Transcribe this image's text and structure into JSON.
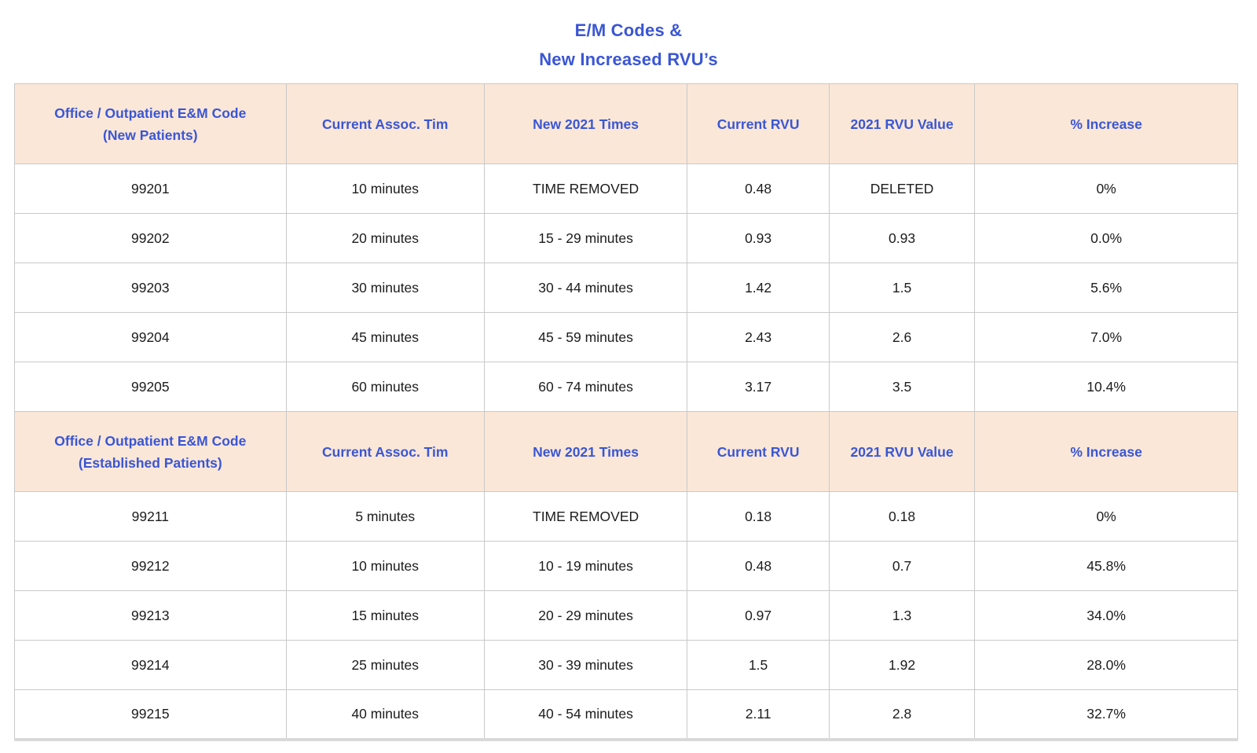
{
  "title": {
    "line1": "E/M Codes &",
    "line2": "New Increased RVU’s"
  },
  "colors": {
    "accent_blue": "#3a56d4",
    "header_background": "#fae7d8",
    "grid_border": "#c9c9c9",
    "body_text": "#1c1c1c"
  },
  "table": {
    "sections": [
      {
        "header": {
          "col1_line1": "Office / Outpatient E&M Code",
          "col1_line2": "(New Patients)",
          "col2": "Current Assoc. Tim",
          "col3": "New 2021 Times",
          "col4": "Current RVU",
          "col5": "2021 RVU Value",
          "col6": "% Increase"
        },
        "rows": [
          [
            "99201",
            "10 minutes",
            "TIME REMOVED",
            "0.48",
            "DELETED",
            "0%"
          ],
          [
            "99202",
            "20 minutes",
            "15 - 29 minutes",
            "0.93",
            "0.93",
            "0.0%"
          ],
          [
            "99203",
            "30 minutes",
            "30 - 44 minutes",
            "1.42",
            "1.5",
            "5.6%"
          ],
          [
            "99204",
            "45 minutes",
            "45 - 59 minutes",
            "2.43",
            "2.6",
            "7.0%"
          ],
          [
            "99205",
            "60 minutes",
            "60 - 74 minutes",
            "3.17",
            "3.5",
            "10.4%"
          ]
        ]
      },
      {
        "header": {
          "col1_line1": "Office / Outpatient E&M Code",
          "col1_line2": "(Established Patients)",
          "col2": "Current Assoc. Tim",
          "col3": "New 2021 Times",
          "col4": "Current RVU",
          "col5": "2021 RVU Value",
          "col6": "% Increase"
        },
        "rows": [
          [
            "99211",
            "5 minutes",
            "TIME REMOVED",
            "0.18",
            "0.18",
            "0%"
          ],
          [
            "99212",
            "10 minutes",
            "10 - 19 minutes",
            "0.48",
            "0.7",
            "45.8%"
          ],
          [
            "99213",
            "15 minutes",
            "20 - 29 minutes",
            "0.97",
            "1.3",
            "34.0%"
          ],
          [
            "99214",
            "25 minutes",
            "30 - 39 minutes",
            "1.5",
            "1.92",
            "28.0%"
          ],
          [
            "99215",
            "40 minutes",
            "40 - 54 minutes",
            "2.11",
            "2.8",
            "32.7%"
          ]
        ]
      }
    ]
  }
}
